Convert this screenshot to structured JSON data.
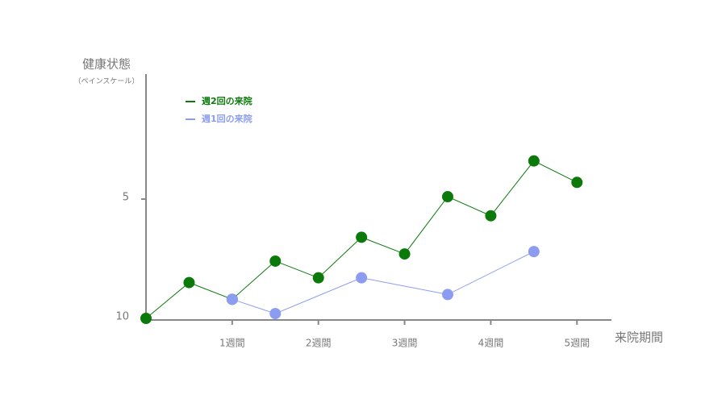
{
  "chart_data": {
    "type": "line",
    "y_label": "健康状態",
    "y_sublabel": "（ペインスケール）",
    "x_label": "来院期間",
    "xlim": [
      0,
      5.4
    ],
    "ylim": [
      10,
      0
    ],
    "xticks": [
      {
        "value": 1,
        "label": "1週間"
      },
      {
        "value": 2,
        "label": "2週間"
      },
      {
        "value": 3,
        "label": "3週間"
      },
      {
        "value": 4,
        "label": "4週間"
      },
      {
        "value": 5,
        "label": "5週間"
      }
    ],
    "yticks": [
      5,
      10
    ],
    "legend": "top-left",
    "series": [
      {
        "name": "週2回の来院",
        "color": "#0b7a0b",
        "x": [
          0,
          0.5,
          1,
          1.5,
          2,
          2.5,
          3,
          3.5,
          4,
          4.5,
          5
        ],
        "values": [
          10,
          8.5,
          9.2,
          7.6,
          8.3,
          6.6,
          7.3,
          4.9,
          5.7,
          3.4,
          4.3
        ]
      },
      {
        "name": "週1回の来院",
        "color": "#8c9cf0",
        "x": [
          1,
          1.5,
          2.5,
          3.5,
          4.5
        ],
        "values": [
          9.2,
          9.8,
          8.3,
          9.0,
          7.2
        ]
      }
    ]
  }
}
